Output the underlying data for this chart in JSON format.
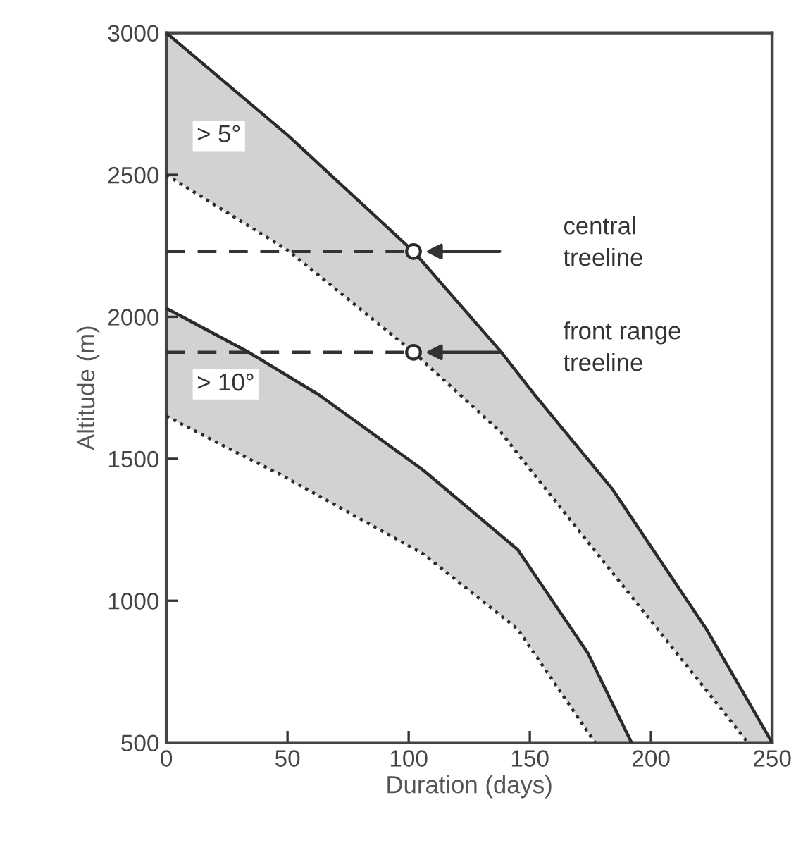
{
  "chart_data": {
    "type": "line",
    "xlabel": "Duration (days)",
    "ylabel": "Altitude (m)",
    "xlim": [
      0,
      250
    ],
    "ylim": [
      500,
      3000
    ],
    "xticks": [
      0,
      50,
      100,
      150,
      200,
      250
    ],
    "yticks": [
      500,
      1000,
      1500,
      2000,
      2500,
      3000
    ],
    "grid": false,
    "legend": false,
    "series": [
      {
        "color": "#2b2b2b",
        "line_style": "solid",
        "x": [
          0,
          50,
          102,
          138,
          152,
          184,
          223,
          240,
          250
        ],
        "values": [
          3000,
          2640,
          2230,
          1878,
          1725,
          1394,
          898,
          648,
          500
        ],
        "upper": [
          3000,
          2640,
          2230,
          1878,
          1725,
          1394,
          898,
          648,
          500
        ],
        "lower": [
          2500,
          2235,
          1875,
          1594,
          1442,
          1100,
          683,
          500,
          500
        ]
      },
      {
        "color": "#2b2b2b",
        "line_style": "dotted",
        "x": [
          0,
          50,
          102,
          138,
          152,
          184,
          223,
          240
        ],
        "values": [
          2500,
          2235,
          1875,
          1594,
          1442,
          1100,
          683,
          500
        ]
      },
      {
        "color": "#2b2b2b",
        "line_style": "solid",
        "x": [
          0,
          34,
          47,
          63,
          106,
          145,
          174,
          177,
          192
        ],
        "values": [
          2030,
          1875,
          1808,
          1725,
          1460,
          1180,
          815,
          762,
          500
        ],
        "upper": [
          2030,
          1875,
          1808,
          1725,
          1460,
          1180,
          815,
          762,
          500
        ],
        "lower": [
          1650,
          1500,
          1445,
          1369,
          1165,
          900,
          537,
          500,
          500
        ]
      },
      {
        "color": "#2b2b2b",
        "line_style": "dotted",
        "x": [
          0,
          34,
          47,
          63,
          106,
          145,
          174,
          177
        ],
        "values": [
          1650,
          1500,
          1445,
          1369,
          1165,
          900,
          537,
          500
        ]
      },
      {
        "color": "#333333",
        "line_style": "dashed",
        "x": [
          0,
          102
        ],
        "values": [
          2230,
          2230
        ]
      },
      {
        "color": "#333333",
        "line_style": "dashed",
        "x": [
          0,
          102
        ],
        "values": [
          1875,
          1875
        ]
      },
      {
        "type": "scatter",
        "color": "#2b2b2b",
        "marker": "circle",
        "x": [
          102,
          102
        ],
        "values": [
          2230,
          1875
        ]
      }
    ],
    "annotations": [
      "central\ntreeline",
      "front range\ntreeline",
      "> 5°",
      "> 10°"
    ]
  }
}
